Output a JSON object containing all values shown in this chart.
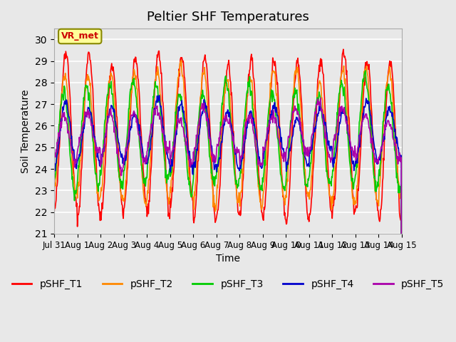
{
  "title": "Peltier SHF Temperatures",
  "xlabel": "Time",
  "ylabel": "Soil Temperature",
  "ylim": [
    21.0,
    30.5
  ],
  "yticks": [
    21.0,
    22.0,
    23.0,
    24.0,
    25.0,
    26.0,
    27.0,
    28.0,
    29.0,
    30.0
  ],
  "series_colors": [
    "#ff0000",
    "#ff8800",
    "#00cc00",
    "#0000cc",
    "#aa00aa"
  ],
  "series_labels": [
    "pSHF_T1",
    "pSHF_T2",
    "pSHF_T3",
    "pSHF_T4",
    "pSHF_T5"
  ],
  "annotation_text": "VR_met",
  "annotation_color": "#cc0000",
  "annotation_bg": "#ffff99",
  "annotation_border": "#888800",
  "background_color": "#e8e8e8",
  "legend_fontsize": 10,
  "title_fontsize": 13,
  "tick_labels": [
    "Jul 31",
    "Aug 1",
    "Aug 2",
    "Aug 3",
    "Aug 4",
    "Aug 5",
    "Aug 6",
    "Aug 7",
    "Aug 8",
    "Aug 9",
    "Aug 10",
    "Aug 11",
    "Aug 12",
    "Aug 13",
    "Aug 14",
    "Aug 15"
  ],
  "n_days": 15,
  "points_per_day": 48
}
